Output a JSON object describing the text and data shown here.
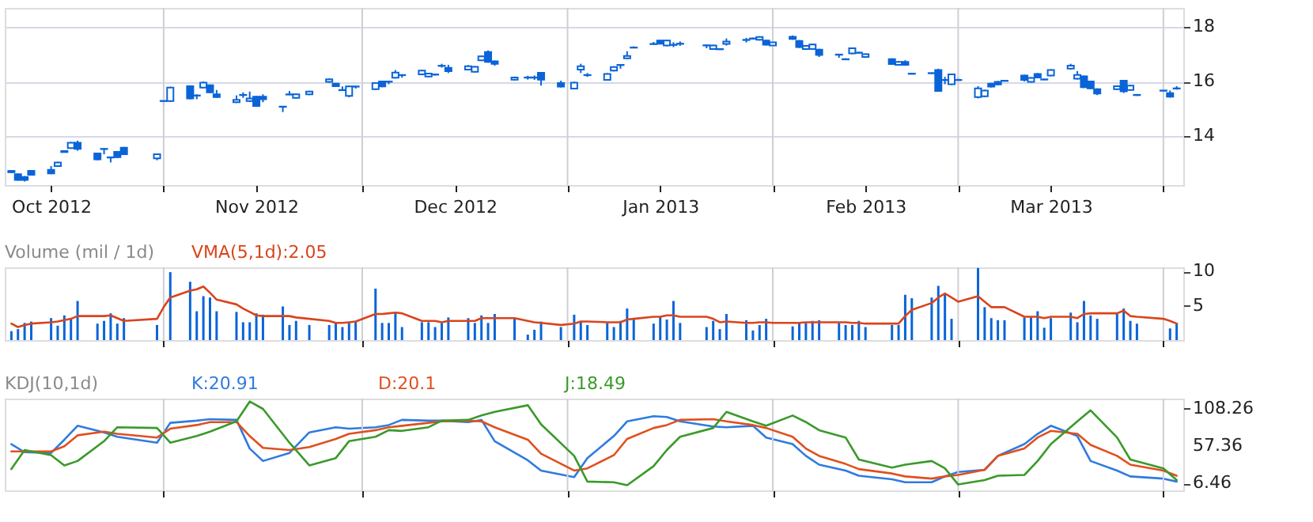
{
  "chart_data": [
    {
      "type": "candlestick",
      "color": "#0a64d8",
      "grid": true,
      "x": [
        "2012-10-09",
        "2012-10-10",
        "2012-10-11",
        "2012-10-12",
        "2012-10-15",
        "2012-10-16",
        "2012-10-17",
        "2012-10-18",
        "2012-10-19",
        "2012-10-22",
        "2012-10-23",
        "2012-10-24",
        "2012-10-25",
        "2012-10-26",
        "2012-10-31",
        "2012-11-01",
        "2012-11-02",
        "2012-11-05",
        "2012-11-06",
        "2012-11-07",
        "2012-11-08",
        "2012-11-09",
        "2012-11-12",
        "2012-11-13",
        "2012-11-14",
        "2012-11-15",
        "2012-11-16",
        "2012-11-19",
        "2012-11-20",
        "2012-11-21",
        "2012-11-23",
        "2012-11-26",
        "2012-11-27",
        "2012-11-28",
        "2012-11-29",
        "2012-11-30",
        "2012-12-03",
        "2012-12-04",
        "2012-12-05",
        "2012-12-06",
        "2012-12-07",
        "2012-12-10",
        "2012-12-11",
        "2012-12-12",
        "2012-12-13",
        "2012-12-14",
        "2012-12-17",
        "2012-12-18",
        "2012-12-19",
        "2012-12-20",
        "2012-12-21",
        "2012-12-24",
        "2012-12-26",
        "2012-12-27",
        "2012-12-28",
        "2012-12-31",
        "2013-01-02",
        "2013-01-03",
        "2013-01-04",
        "2013-01-07",
        "2013-01-08",
        "2013-01-09",
        "2013-01-10",
        "2013-01-11",
        "2013-01-14",
        "2013-01-15",
        "2013-01-16",
        "2013-01-17",
        "2013-01-18",
        "2013-01-22",
        "2013-01-23",
        "2013-01-24",
        "2013-01-25",
        "2013-01-28",
        "2013-01-29",
        "2013-01-30",
        "2013-01-31",
        "2013-02-01",
        "2013-02-04",
        "2013-02-05",
        "2013-02-06",
        "2013-02-07",
        "2013-02-08",
        "2013-02-11",
        "2013-02-12",
        "2013-02-13",
        "2013-02-14",
        "2013-02-15",
        "2013-02-19",
        "2013-02-20",
        "2013-02-21",
        "2013-02-22",
        "2013-02-25",
        "2013-02-26",
        "2013-02-27",
        "2013-02-28",
        "2013-03-01",
        "2013-03-04",
        "2013-03-05",
        "2013-03-06",
        "2013-03-07",
        "2013-03-08",
        "2013-03-11",
        "2013-03-12",
        "2013-03-13",
        "2013-03-14",
        "2013-03-15",
        "2013-03-18",
        "2013-03-19",
        "2013-03-20",
        "2013-03-21",
        "2013-03-22",
        "2013-03-25",
        "2013-03-26",
        "2013-03-27",
        "2013-03-28",
        "2013-04-01",
        "2013-04-02",
        "2013-04-03"
      ],
      "ohlc": [
        [
          12.72,
          12.75,
          12.64,
          12.67
        ],
        [
          12.6,
          12.63,
          12.36,
          12.39
        ],
        [
          12.5,
          12.53,
          12.33,
          12.39
        ],
        [
          12.72,
          12.75,
          12.55,
          12.58
        ],
        [
          12.76,
          12.9,
          12.6,
          12.63
        ],
        [
          12.9,
          13.06,
          12.87,
          13.03
        ],
        [
          13.45,
          13.47,
          13.39,
          13.41
        ],
        [
          13.56,
          13.78,
          13.53,
          13.75
        ],
        [
          13.75,
          13.83,
          13.46,
          13.53
        ],
        [
          13.36,
          13.39,
          13.11,
          13.14
        ],
        [
          13.53,
          13.55,
          13.33,
          13.52
        ],
        [
          13.22,
          13.24,
          13.03,
          13.21
        ],
        [
          13.42,
          13.45,
          13.19,
          13.22
        ],
        [
          13.57,
          13.6,
          13.3,
          13.33
        ],
        [
          13.18,
          13.36,
          13.11,
          13.33
        ],
        [
          15.29,
          15.31,
          15.11,
          15.28
        ],
        [
          15.28,
          15.81,
          15.25,
          15.78
        ],
        [
          15.83,
          15.86,
          15.35,
          15.38
        ],
        [
          15.49,
          15.53,
          15.35,
          15.48
        ],
        [
          15.78,
          16.0,
          15.75,
          15.96
        ],
        [
          15.86,
          15.89,
          15.57,
          15.6
        ],
        [
          15.53,
          15.69,
          15.4,
          15.43
        ],
        [
          15.24,
          15.49,
          15.21,
          15.33
        ],
        [
          15.51,
          15.6,
          15.4,
          15.5
        ],
        [
          15.28,
          15.63,
          15.25,
          15.38
        ],
        [
          15.44,
          15.47,
          15.07,
          15.1
        ],
        [
          15.44,
          15.53,
          15.24,
          15.35
        ],
        [
          15.08,
          15.1,
          14.88,
          15.07
        ],
        [
          15.53,
          15.65,
          15.5,
          15.52
        ],
        [
          15.4,
          15.56,
          15.37,
          15.53
        ],
        [
          15.53,
          15.66,
          15.5,
          15.63
        ],
        [
          15.99,
          16.11,
          15.96,
          16.08
        ],
        [
          15.92,
          15.95,
          15.8,
          15.83
        ],
        [
          15.69,
          15.82,
          15.66,
          15.68
        ],
        [
          15.47,
          15.85,
          15.42,
          15.82
        ],
        [
          15.82,
          15.84,
          15.74,
          15.81
        ],
        [
          15.72,
          15.97,
          15.69,
          15.94
        ],
        [
          16.0,
          16.03,
          15.79,
          15.82
        ],
        [
          16.0,
          16.03,
          15.9,
          15.99
        ],
        [
          16.14,
          16.42,
          16.11,
          16.33
        ],
        [
          16.24,
          16.26,
          16.14,
          16.23
        ],
        [
          16.26,
          16.43,
          16.23,
          16.4
        ],
        [
          16.18,
          16.32,
          16.15,
          16.29
        ],
        [
          16.26,
          16.29,
          16.22,
          16.25
        ],
        [
          16.58,
          16.65,
          16.51,
          16.57
        ],
        [
          16.5,
          16.61,
          16.31,
          16.38
        ],
        [
          16.44,
          16.6,
          16.41,
          16.56
        ],
        [
          16.36,
          16.57,
          16.33,
          16.54
        ],
        [
          16.78,
          16.95,
          16.75,
          16.92
        ],
        [
          17.08,
          17.14,
          16.69,
          16.72
        ],
        [
          16.74,
          16.77,
          16.58,
          16.65
        ],
        [
          16.07,
          16.18,
          16.04,
          16.15
        ],
        [
          16.15,
          16.21,
          16.07,
          16.14
        ],
        [
          16.15,
          16.22,
          16.06,
          16.14
        ],
        [
          16.32,
          16.35,
          15.85,
          16.07
        ],
        [
          15.94,
          16.03,
          15.78,
          15.81
        ],
        [
          15.74,
          15.99,
          15.71,
          15.96
        ],
        [
          16.44,
          16.65,
          16.31,
          16.56
        ],
        [
          16.24,
          16.31,
          16.17,
          16.23
        ],
        [
          16.06,
          16.31,
          16.03,
          16.28
        ],
        [
          16.4,
          16.56,
          16.37,
          16.53
        ],
        [
          16.61,
          16.63,
          16.47,
          16.6
        ],
        [
          16.85,
          17.11,
          16.82,
          16.94
        ],
        [
          17.25,
          17.29,
          17.22,
          17.24
        ],
        [
          17.38,
          17.45,
          17.36,
          17.37
        ],
        [
          17.5,
          17.53,
          17.36,
          17.39
        ],
        [
          17.32,
          17.53,
          17.29,
          17.5
        ],
        [
          17.35,
          17.44,
          17.26,
          17.34
        ],
        [
          17.39,
          17.47,
          17.31,
          17.38
        ],
        [
          17.33,
          17.35,
          17.22,
          17.32
        ],
        [
          17.19,
          17.35,
          17.16,
          17.32
        ],
        [
          17.19,
          17.21,
          17.16,
          17.18
        ],
        [
          17.38,
          17.58,
          17.32,
          17.47
        ],
        [
          17.53,
          17.6,
          17.43,
          17.52
        ],
        [
          17.58,
          17.61,
          17.55,
          17.57
        ],
        [
          17.53,
          17.66,
          17.5,
          17.63
        ],
        [
          17.5,
          17.53,
          17.32,
          17.35
        ],
        [
          17.32,
          17.47,
          17.29,
          17.44
        ],
        [
          17.64,
          17.69,
          17.53,
          17.56
        ],
        [
          17.49,
          17.52,
          17.23,
          17.26
        ],
        [
          17.19,
          17.34,
          17.16,
          17.31
        ],
        [
          17.19,
          17.39,
          17.16,
          17.36
        ],
        [
          17.17,
          17.2,
          16.9,
          16.97
        ],
        [
          16.99,
          17.01,
          16.87,
          16.98
        ],
        [
          16.82,
          16.85,
          16.79,
          16.81
        ],
        [
          17.03,
          17.25,
          17.0,
          17.22
        ],
        [
          17.06,
          17.09,
          17.03,
          17.05
        ],
        [
          16.9,
          17.03,
          16.87,
          17.0
        ],
        [
          16.82,
          16.85,
          16.61,
          16.64
        ],
        [
          16.61,
          16.75,
          16.58,
          16.72
        ],
        [
          16.72,
          16.78,
          16.58,
          16.61
        ],
        [
          16.29,
          16.32,
          16.26,
          16.28
        ],
        [
          16.31,
          16.33,
          16.28,
          16.3
        ],
        [
          16.42,
          16.47,
          15.63,
          15.65
        ],
        [
          16.06,
          16.17,
          15.9,
          16.05
        ],
        [
          15.9,
          16.29,
          15.87,
          16.26
        ],
        [
          16.06,
          16.15,
          16.04,
          16.05
        ],
        [
          15.43,
          15.83,
          15.38,
          15.75
        ],
        [
          15.46,
          15.7,
          15.43,
          15.67
        ],
        [
          15.92,
          15.95,
          15.78,
          15.81
        ],
        [
          15.99,
          16.02,
          15.86,
          15.89
        ],
        [
          16.03,
          16.06,
          16.0,
          16.02
        ],
        [
          16.22,
          16.25,
          16.0,
          16.06
        ],
        [
          15.99,
          16.16,
          15.96,
          16.13
        ],
        [
          16.28,
          16.31,
          16.12,
          16.15
        ],
        [
          16.08,
          16.1,
          16.05,
          16.07
        ],
        [
          16.22,
          16.45,
          16.19,
          16.42
        ],
        [
          16.47,
          16.65,
          16.44,
          16.58
        ],
        [
          16.1,
          16.38,
          16.07,
          16.24
        ],
        [
          16.19,
          16.22,
          15.76,
          15.79
        ],
        [
          16.0,
          16.03,
          15.72,
          15.75
        ],
        [
          15.72,
          15.75,
          15.5,
          15.56
        ],
        [
          15.72,
          15.86,
          15.69,
          15.83
        ],
        [
          16.03,
          16.06,
          15.58,
          15.64
        ],
        [
          15.69,
          15.88,
          15.66,
          15.85
        ],
        [
          15.51,
          15.54,
          15.47,
          15.5
        ],
        [
          15.67,
          15.72,
          15.6,
          15.66
        ],
        [
          15.57,
          15.67,
          15.41,
          15.44
        ],
        [
          15.75,
          15.83,
          15.7,
          15.74
        ]
      ],
      "xlim": [
        "2012-10-08",
        "2013-04-04"
      ],
      "xticks": [
        {
          "value": "2012-11-01",
          "label": null
        },
        {
          "value": "2012-12-01",
          "label": null
        },
        {
          "value": "2013-01-01",
          "label": null
        },
        {
          "value": "2013-02-01",
          "label": null
        },
        {
          "value": "2013-03-01",
          "label": null
        },
        {
          "value": "2013-04-01",
          "label": null
        },
        {
          "value": "2012-10-15",
          "label": "Oct 2012"
        },
        {
          "value": "2012-11-15",
          "label": "Nov 2012"
        },
        {
          "value": "2012-12-15",
          "label": "Dec 2012"
        },
        {
          "value": "2013-01-15",
          "label": "Jan 2013"
        },
        {
          "value": "2013-02-15",
          "label": "Feb 2013"
        },
        {
          "value": "2013-03-15",
          "label": "Mar 2013"
        }
      ],
      "ylim": [
        12.2,
        18.7
      ],
      "yticks": [
        14,
        16,
        18
      ]
    },
    {
      "type": "bar",
      "title": "Volume (mil / 1d)",
      "grid": "x",
      "tick_labels": "y",
      "x": [
        "2012-10-09",
        "2012-10-10",
        "2012-10-11",
        "2012-10-12",
        "2012-10-15",
        "2012-10-16",
        "2012-10-17",
        "2012-10-18",
        "2012-10-19",
        "2012-10-22",
        "2012-10-23",
        "2012-10-24",
        "2012-10-25",
        "2012-10-26",
        "2012-10-31",
        "2012-11-01",
        "2012-11-02",
        "2012-11-05",
        "2012-11-06",
        "2012-11-07",
        "2012-11-08",
        "2012-11-09",
        "2012-11-12",
        "2012-11-13",
        "2012-11-14",
        "2012-11-15",
        "2012-11-16",
        "2012-11-19",
        "2012-11-20",
        "2012-11-21",
        "2012-11-23",
        "2012-11-26",
        "2012-11-27",
        "2012-11-28",
        "2012-11-29",
        "2012-11-30",
        "2012-12-03",
        "2012-12-04",
        "2012-12-05",
        "2012-12-06",
        "2012-12-07",
        "2012-12-10",
        "2012-12-11",
        "2012-12-12",
        "2012-12-13",
        "2012-12-14",
        "2012-12-17",
        "2012-12-18",
        "2012-12-19",
        "2012-12-20",
        "2012-12-21",
        "2012-12-24",
        "2012-12-26",
        "2012-12-27",
        "2012-12-28",
        "2012-12-31",
        "2013-01-02",
        "2013-01-03",
        "2013-01-04",
        "2013-01-07",
        "2013-01-08",
        "2013-01-09",
        "2013-01-10",
        "2013-01-11",
        "2013-01-14",
        "2013-01-15",
        "2013-01-16",
        "2013-01-17",
        "2013-01-18",
        "2013-01-22",
        "2013-01-23",
        "2013-01-24",
        "2013-01-25",
        "2013-01-28",
        "2013-01-29",
        "2013-01-30",
        "2013-01-31",
        "2013-02-01",
        "2013-02-04",
        "2013-02-05",
        "2013-02-06",
        "2013-02-07",
        "2013-02-08",
        "2013-02-11",
        "2013-02-12",
        "2013-02-13",
        "2013-02-14",
        "2013-02-15",
        "2013-02-19",
        "2013-02-20",
        "2013-02-21",
        "2013-02-22",
        "2013-02-25",
        "2013-02-26",
        "2013-02-27",
        "2013-02-28",
        "2013-03-01",
        "2013-03-04",
        "2013-03-05",
        "2013-03-06",
        "2013-03-07",
        "2013-03-08",
        "2013-03-11",
        "2013-03-12",
        "2013-03-13",
        "2013-03-14",
        "2013-03-15",
        "2013-03-18",
        "2013-03-19",
        "2013-03-20",
        "2013-03-21",
        "2013-03-22",
        "2013-03-25",
        "2013-03-26",
        "2013-03-27",
        "2013-03-28",
        "2013-04-01",
        "2013-04-02",
        "2013-04-03"
      ],
      "series": [
        {
          "type": "bar",
          "color": "#0a64d8",
          "values": [
            1.3,
            1.6,
            2.5,
            2.7,
            3.2,
            2.1,
            3.6,
            3.1,
            5.7,
            2.4,
            2.8,
            3.9,
            2.4,
            3.2,
            2.2,
            null,
            9.9,
            8.5,
            4.2,
            6.4,
            6.2,
            4.2,
            4.1,
            2.6,
            2.6,
            3.9,
            3.7,
            4.9,
            2.2,
            2.8,
            2.2,
            2.2,
            2.6,
            1.9,
            2.6,
            2.8,
            7.5,
            2.5,
            2.5,
            4.1,
            1.9,
            2.6,
            2.6,
            1.9,
            2.5,
            3.3,
            3.2,
            2.5,
            3.6,
            2.5,
            3.8,
            3.1,
            0.8,
            1.5,
            2.7,
            1.9,
            3.7,
            2.7,
            2.2,
            2.5,
            1.9,
            2.8,
            4.6,
            3.2,
            2.4,
            3.4,
            3.0,
            5.7,
            2.5,
            1.9,
            2.8,
            1.6,
            3.8,
            2.9,
            1.4,
            2.2,
            3.1,
            null,
            2.0,
            2.5,
            2.5,
            2.8,
            2.9,
            2.5,
            2.2,
            2.2,
            2.8,
            1.9,
            2.2,
            2.2,
            6.6,
            6.1,
            6.2,
            7.9,
            6.8,
            3.1,
            null,
            10.5,
            4.8,
            3.2,
            2.9,
            2.9,
            3.3,
            3.3,
            4.2,
            1.8,
            3.2,
            4.0,
            2.6,
            5.7,
            3.6,
            3.1,
            3.8,
            4.6,
            2.8,
            2.4,
            null,
            1.7,
            2.5
          ]
        },
        {
          "type": "line",
          "name": "VMA(5,1d):2.05",
          "color": "#d9441c",
          "values": [
            2.4,
            1.9,
            2.2,
            2.4,
            2.6,
            2.7,
            2.9,
            3.1,
            3.5,
            3.5,
            3.5,
            3.6,
            3.2,
            2.8,
            3.1,
            4.8,
            6.2,
            7.2,
            7.4,
            7.8,
            6.9,
            5.9,
            5.2,
            4.6,
            4.1,
            3.6,
            3.5,
            3.5,
            3.5,
            3.3,
            3.1,
            2.8,
            2.5,
            2.5,
            2.6,
            2.7,
            3.8,
            3.8,
            3.9,
            4.0,
            3.9,
            2.8,
            2.8,
            2.8,
            2.6,
            2.8,
            2.8,
            2.8,
            3.2,
            3.2,
            3.2,
            3.2,
            2.8,
            2.6,
            2.5,
            2.2,
            2.4,
            2.7,
            2.7,
            2.6,
            2.6,
            2.6,
            3.0,
            3.1,
            3.4,
            3.4,
            3.6,
            3.6,
            3.4,
            3.4,
            3.1,
            2.6,
            2.7,
            2.5,
            2.5,
            2.6,
            2.6,
            2.5,
            2.5,
            2.5,
            2.6,
            2.6,
            2.6,
            2.6,
            2.6,
            2.5,
            2.5,
            2.4,
            2.4,
            2.4,
            3.5,
            4.4,
            5.4,
            6.2,
            6.8,
            6.2,
            5.6,
            6.4,
            5.6,
            4.8,
            4.8,
            4.8,
            3.4,
            3.4,
            3.4,
            3.2,
            3.4,
            3.4,
            3.2,
            3.8,
            3.9,
            3.9,
            3.9,
            4.3,
            3.5,
            3.4,
            3.1,
            2.8,
            2.4
          ]
        }
      ],
      "xlim": [
        "2012-10-08",
        "2013-04-04"
      ],
      "xticks": [
        {
          "value": "2012-11-01",
          "label": null
        },
        {
          "value": "2012-12-01",
          "label": null
        },
        {
          "value": "2013-01-01",
          "label": null
        },
        {
          "value": "2013-02-01",
          "label": null
        },
        {
          "value": "2013-03-01",
          "label": null
        },
        {
          "value": "2013-04-01",
          "label": null
        }
      ],
      "ylim": [
        0,
        10.6
      ],
      "yticks": [
        5,
        10
      ]
    },
    {
      "type": "line",
      "title": "KDJ(10,1d)",
      "grid": "x",
      "tick_labels": "y",
      "x": [
        "2012-10-09",
        "2012-10-11",
        "2012-10-15",
        "2012-10-17",
        "2012-10-19",
        "2012-10-23",
        "2012-10-25",
        "2012-10-31",
        "2012-11-02",
        "2012-11-06",
        "2012-11-08",
        "2012-11-12",
        "2012-11-14",
        "2012-11-16",
        "2012-11-20",
        "2012-11-23",
        "2012-11-27",
        "2012-11-29",
        "2012-12-03",
        "2012-12-05",
        "2012-12-07",
        "2012-12-11",
        "2012-12-13",
        "2012-12-17",
        "2012-12-19",
        "2012-12-21",
        "2012-12-26",
        "2012-12-28",
        "2013-01-02",
        "2013-01-04",
        "2013-01-08",
        "2013-01-10",
        "2013-01-14",
        "2013-01-16",
        "2013-01-18",
        "2013-01-23",
        "2013-01-25",
        "2013-01-29",
        "2013-01-31",
        "2013-02-04",
        "2013-02-06",
        "2013-02-08",
        "2013-02-12",
        "2013-02-14",
        "2013-02-19",
        "2013-02-21",
        "2013-02-25",
        "2013-02-27",
        "2013-03-01",
        "2013-03-05",
        "2013-03-07",
        "2013-03-11",
        "2013-03-13",
        "2013-03-15",
        "2013-03-19",
        "2013-03-21",
        "2013-03-25",
        "2013-03-27",
        "2013-04-01",
        "2013-04-03"
      ],
      "series": [
        {
          "type": "line",
          "name": "K:20.91",
          "color": "#2f7be0",
          "values": [
            60,
            49,
            48,
            66,
            85,
            76,
            70,
            62,
            89,
            92,
            94,
            93,
            54,
            37,
            48,
            76,
            83,
            81,
            83,
            86,
            93,
            92,
            92,
            90,
            93,
            64,
            38,
            24,
            15,
            41,
            71,
            91,
            98,
            97,
            91,
            84,
            83,
            85,
            69,
            60,
            44,
            32,
            24,
            17,
            12,
            8,
            8,
            16,
            22,
            25,
            44,
            60,
            74,
            85,
            71,
            37,
            24,
            16,
            13,
            9
          ]
        },
        {
          "type": "line",
          "name": "D:20.1",
          "color": "#e0501e",
          "values": [
            50,
            50,
            50,
            57,
            72,
            77,
            74,
            69,
            81,
            86,
            90,
            90,
            71,
            55,
            52,
            56,
            67,
            74,
            79,
            83,
            85,
            89,
            91,
            92,
            91,
            83,
            66,
            47,
            24,
            27,
            45,
            67,
            82,
            86,
            93,
            94,
            91,
            86,
            82,
            70,
            54,
            44,
            33,
            26,
            20,
            16,
            13,
            16,
            18,
            25,
            44,
            54,
            69,
            78,
            74,
            59,
            44,
            32,
            24,
            17
          ]
        },
        {
          "type": "line",
          "name": "J:18.49",
          "color": "#3a9a2a",
          "values": [
            26,
            52,
            45,
            31,
            37,
            64,
            83,
            82,
            62,
            71,
            77,
            91,
            118,
            108,
            62,
            31,
            41,
            64,
            70,
            79,
            78,
            83,
            92,
            93,
            99,
            104,
            113,
            87,
            44,
            9,
            8,
            4,
            30,
            52,
            70,
            82,
            104,
            91,
            85,
            99,
            90,
            79,
            69,
            39,
            28,
            32,
            37,
            27,
            5,
            11,
            17,
            18,
            37,
            60,
            91,
            106,
            69,
            39,
            27,
            11
          ]
        }
      ],
      "xlim": [
        "2012-10-08",
        "2013-04-04"
      ],
      "xticks": [
        {
          "value": "2012-11-01",
          "label": null
        },
        {
          "value": "2012-12-01",
          "label": null
        },
        {
          "value": "2013-01-01",
          "label": null
        },
        {
          "value": "2013-02-01",
          "label": null
        },
        {
          "value": "2013-03-01",
          "label": null
        },
        {
          "value": "2013-04-01",
          "label": null
        }
      ],
      "ylim": [
        -3,
        122
      ],
      "yticks": [
        6.46,
        57.36,
        108.26
      ]
    }
  ]
}
